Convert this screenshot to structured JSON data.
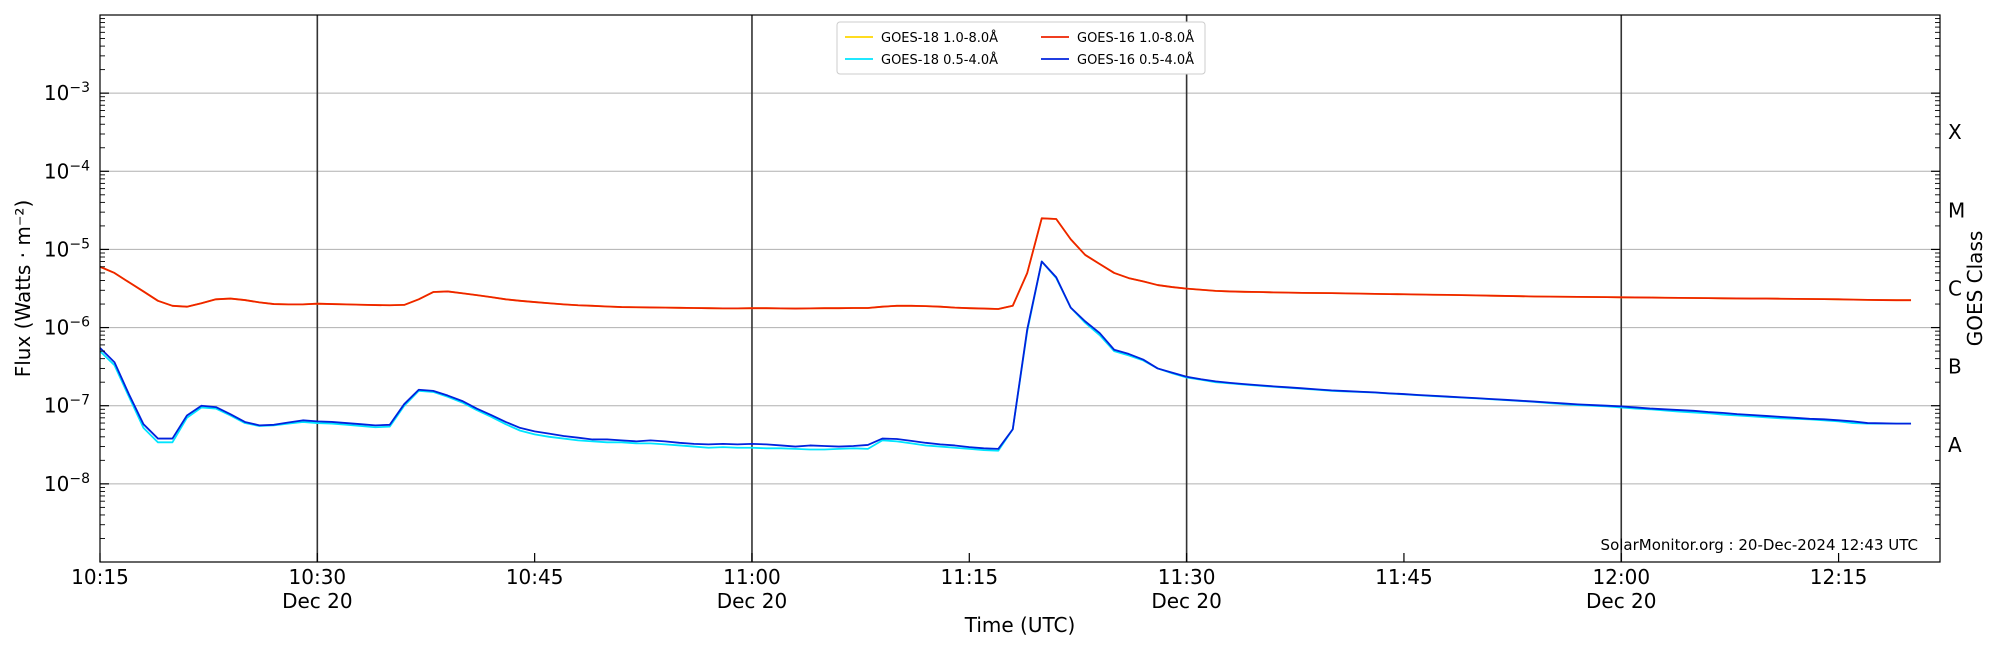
{
  "chart_data": {
    "type": "line",
    "xlabel": "Time (UTC)",
    "ylabel": "Flux (Watts · m⁻²)",
    "ylabel_right": "GOES Class",
    "x_unit": "minutes",
    "xlim": [
      615,
      742
    ],
    "ylim": [
      1e-09,
      0.01
    ],
    "y_scale": "log",
    "grid": "horizontal at decades",
    "legend_position": "top-center",
    "credit": "SolarMonitor.org : 20-Dec-2024 12:43 UTC",
    "x_ticks": [
      {
        "v": 615,
        "time": "10:15",
        "date": ""
      },
      {
        "v": 630,
        "time": "10:30",
        "date": "Dec 20"
      },
      {
        "v": 645,
        "time": "10:45",
        "date": ""
      },
      {
        "v": 660,
        "time": "11:00",
        "date": "Dec 20"
      },
      {
        "v": 675,
        "time": "11:15",
        "date": ""
      },
      {
        "v": 690,
        "time": "11:30",
        "date": "Dec 20"
      },
      {
        "v": 705,
        "time": "11:45",
        "date": ""
      },
      {
        "v": 720,
        "time": "12:00",
        "date": "Dec 20"
      },
      {
        "v": 735,
        "time": "12:15",
        "date": ""
      }
    ],
    "day_lines": [
      630,
      660,
      690,
      720
    ],
    "y_ticks": [
      {
        "v": 1e-08,
        "base": "10",
        "exp": "−8"
      },
      {
        "v": 1e-07,
        "base": "10",
        "exp": "−7"
      },
      {
        "v": 1e-06,
        "base": "10",
        "exp": "−6"
      },
      {
        "v": 1e-05,
        "base": "10",
        "exp": "−5"
      },
      {
        "v": 0.0001,
        "base": "10",
        "exp": "−4"
      },
      {
        "v": 0.001,
        "base": "10",
        "exp": "−3"
      }
    ],
    "goes_classes": [
      {
        "label": "A",
        "v": 3.16e-08
      },
      {
        "label": "B",
        "v": 3.16e-07
      },
      {
        "label": "C",
        "v": 3.16e-06
      },
      {
        "label": "M",
        "v": 3.16e-05
      },
      {
        "label": "X",
        "v": 0.000316
      }
    ],
    "x": [
      615,
      616,
      617,
      618,
      619,
      620,
      621,
      622,
      623,
      624,
      625,
      626,
      627,
      628,
      629,
      630,
      631,
      632,
      633,
      634,
      635,
      636,
      637,
      638,
      639,
      640,
      641,
      642,
      643,
      644,
      645,
      646,
      647,
      648,
      649,
      650,
      651,
      652,
      653,
      654,
      655,
      656,
      657,
      658,
      659,
      660,
      661,
      662,
      663,
      664,
      665,
      666,
      667,
      668,
      669,
      670,
      671,
      672,
      673,
      674,
      675,
      676,
      677,
      678,
      679,
      680,
      681,
      682,
      683,
      684,
      685,
      686,
      687,
      688,
      689,
      690,
      691,
      692,
      693,
      694,
      695,
      696,
      697,
      698,
      699,
      700,
      701,
      702,
      703,
      704,
      705,
      706,
      707,
      708,
      709,
      710,
      711,
      712,
      713,
      714,
      715,
      716,
      717,
      718,
      719,
      720,
      721,
      722,
      723,
      724,
      725,
      726,
      727,
      728,
      729,
      730,
      731,
      732,
      733,
      734,
      735,
      736,
      737,
      738,
      739,
      740
    ],
    "series": [
      {
        "name": "GOES-18 1.0-8.0Å",
        "color": "#ffd700",
        "values": [
          6e-06,
          5e-06,
          3.8e-06,
          2.9e-06,
          2.2e-06,
          1.9e-06,
          1.85e-06,
          2.05e-06,
          2.3e-06,
          2.35e-06,
          2.25e-06,
          2.1e-06,
          2e-06,
          1.98e-06,
          1.98e-06,
          2.02e-06,
          2e-06,
          1.98e-06,
          1.96e-06,
          1.94e-06,
          1.93e-06,
          1.95e-06,
          2.3e-06,
          2.85e-06,
          2.9e-06,
          2.75e-06,
          2.6e-06,
          2.45e-06,
          2.3e-06,
          2.2e-06,
          2.12e-06,
          2.05e-06,
          1.98e-06,
          1.93e-06,
          1.9e-06,
          1.86e-06,
          1.83e-06,
          1.82e-06,
          1.81e-06,
          1.8e-06,
          1.79e-06,
          1.78e-06,
          1.77e-06,
          1.76e-06,
          1.76e-06,
          1.77e-06,
          1.77e-06,
          1.76e-06,
          1.75e-06,
          1.76e-06,
          1.77e-06,
          1.77e-06,
          1.78e-06,
          1.78e-06,
          1.85e-06,
          1.9e-06,
          1.9e-06,
          1.88e-06,
          1.85e-06,
          1.8e-06,
          1.77e-06,
          1.75e-06,
          1.73e-06,
          1.9e-06,
          5e-06,
          2.5e-05,
          2.45e-05,
          1.35e-05,
          8.5e-06,
          6.5e-06,
          5e-06,
          4.3e-06,
          3.9e-06,
          3.5e-06,
          3.3e-06,
          3.15e-06,
          3.05e-06,
          2.95e-06,
          2.9e-06,
          2.87e-06,
          2.85e-06,
          2.82e-06,
          2.8e-06,
          2.78e-06,
          2.77e-06,
          2.76e-06,
          2.74e-06,
          2.72e-06,
          2.7e-06,
          2.68e-06,
          2.67e-06,
          2.65e-06,
          2.63e-06,
          2.62e-06,
          2.6e-06,
          2.58e-06,
          2.56e-06,
          2.54e-06,
          2.52e-06,
          2.5e-06,
          2.49e-06,
          2.48e-06,
          2.47e-06,
          2.46e-06,
          2.45e-06,
          2.44e-06,
          2.43e-06,
          2.42e-06,
          2.41e-06,
          2.4e-06,
          2.39e-06,
          2.38e-06,
          2.37e-06,
          2.36e-06,
          2.35e-06,
          2.35e-06,
          2.34e-06,
          2.33e-06,
          2.32e-06,
          2.31e-06,
          2.3e-06,
          2.28e-06,
          2.26e-06,
          2.25e-06,
          2.24e-06,
          2.24e-06
        ]
      },
      {
        "name": "GOES-16 1.0-8.0Å",
        "color": "#ee2200",
        "values": [
          6e-06,
          5e-06,
          3.8e-06,
          2.9e-06,
          2.2e-06,
          1.9e-06,
          1.85e-06,
          2.05e-06,
          2.3e-06,
          2.35e-06,
          2.25e-06,
          2.1e-06,
          2e-06,
          1.98e-06,
          1.98e-06,
          2.02e-06,
          2e-06,
          1.98e-06,
          1.96e-06,
          1.94e-06,
          1.93e-06,
          1.95e-06,
          2.3e-06,
          2.85e-06,
          2.9e-06,
          2.75e-06,
          2.6e-06,
          2.45e-06,
          2.3e-06,
          2.2e-06,
          2.12e-06,
          2.05e-06,
          1.98e-06,
          1.93e-06,
          1.9e-06,
          1.86e-06,
          1.83e-06,
          1.82e-06,
          1.81e-06,
          1.8e-06,
          1.79e-06,
          1.78e-06,
          1.77e-06,
          1.76e-06,
          1.76e-06,
          1.77e-06,
          1.77e-06,
          1.76e-06,
          1.75e-06,
          1.76e-06,
          1.77e-06,
          1.77e-06,
          1.78e-06,
          1.78e-06,
          1.85e-06,
          1.9e-06,
          1.9e-06,
          1.88e-06,
          1.85e-06,
          1.8e-06,
          1.77e-06,
          1.75e-06,
          1.73e-06,
          1.9e-06,
          5e-06,
          2.5e-05,
          2.45e-05,
          1.35e-05,
          8.5e-06,
          6.5e-06,
          5e-06,
          4.3e-06,
          3.9e-06,
          3.5e-06,
          3.3e-06,
          3.15e-06,
          3.05e-06,
          2.95e-06,
          2.9e-06,
          2.87e-06,
          2.85e-06,
          2.82e-06,
          2.8e-06,
          2.78e-06,
          2.77e-06,
          2.76e-06,
          2.74e-06,
          2.72e-06,
          2.7e-06,
          2.68e-06,
          2.67e-06,
          2.65e-06,
          2.63e-06,
          2.62e-06,
          2.6e-06,
          2.58e-06,
          2.56e-06,
          2.54e-06,
          2.52e-06,
          2.5e-06,
          2.49e-06,
          2.48e-06,
          2.47e-06,
          2.46e-06,
          2.45e-06,
          2.44e-06,
          2.43e-06,
          2.42e-06,
          2.41e-06,
          2.4e-06,
          2.39e-06,
          2.38e-06,
          2.37e-06,
          2.36e-06,
          2.35e-06,
          2.35e-06,
          2.34e-06,
          2.33e-06,
          2.32e-06,
          2.31e-06,
          2.3e-06,
          2.28e-06,
          2.26e-06,
          2.25e-06,
          2.24e-06,
          2.24e-06
        ]
      },
      {
        "name": "GOES-18 0.5-4.0Å",
        "color": "#00e5ff",
        "values": [
          5e-07,
          3.3e-07,
          1.3e-07,
          5.2e-08,
          3.4e-08,
          3.4e-08,
          7e-08,
          9.5e-08,
          9.2e-08,
          7.5e-08,
          6e-08,
          5.5e-08,
          5.6e-08,
          5.9e-08,
          6.2e-08,
          6e-08,
          5.9e-08,
          5.7e-08,
          5.5e-08,
          5.3e-08,
          5.4e-08,
          1e-07,
          1.55e-07,
          1.5e-07,
          1.3e-07,
          1.1e-07,
          8.8e-08,
          7.2e-08,
          5.8e-08,
          4.8e-08,
          4.3e-08,
          4e-08,
          3.8e-08,
          3.6e-08,
          3.5e-08,
          3.4e-08,
          3.4e-08,
          3.3e-08,
          3.3e-08,
          3.2e-08,
          3.1e-08,
          3e-08,
          2.9e-08,
          2.95e-08,
          2.9e-08,
          2.9e-08,
          2.85e-08,
          2.85e-08,
          2.8e-08,
          2.75e-08,
          2.75e-08,
          2.8e-08,
          2.85e-08,
          2.8e-08,
          3.6e-08,
          3.5e-08,
          3.3e-08,
          3.1e-08,
          3e-08,
          2.9e-08,
          2.8e-08,
          2.7e-08,
          2.65e-08,
          5e-08,
          9e-07,
          7e-06,
          4.3e-06,
          1.8e-06,
          1.15e-06,
          8e-07,
          5e-07,
          4.4e-07,
          3.8e-07,
          3e-07,
          2.6e-07,
          2.3e-07,
          2.15e-07,
          2e-07,
          1.93e-07,
          1.86e-07,
          1.8e-07,
          1.75e-07,
          1.7e-07,
          1.65e-07,
          1.6e-07,
          1.55e-07,
          1.52e-07,
          1.5e-07,
          1.47e-07,
          1.43e-07,
          1.4e-07,
          1.36e-07,
          1.33e-07,
          1.3e-07,
          1.27e-07,
          1.24e-07,
          1.21e-07,
          1.18e-07,
          1.15e-07,
          1.12e-07,
          1.08e-07,
          1.05e-07,
          1.02e-07,
          1e-07,
          9.8e-08,
          9.5e-08,
          9.2e-08,
          9e-08,
          8.7e-08,
          8.4e-08,
          8.2e-08,
          8e-08,
          7.7e-08,
          7.5e-08,
          7.3e-08,
          7.1e-08,
          6.9e-08,
          6.8e-08,
          6.7e-08,
          6.5e-08,
          6.3e-08,
          6e-08,
          5.9e-08,
          5.9e-08,
          5.9e-08,
          5.9e-08
        ]
      },
      {
        "name": "GOES-16 0.5-4.0Å",
        "color": "#0022dd",
        "values": [
          5.5e-07,
          3.6e-07,
          1.4e-07,
          5.8e-08,
          3.8e-08,
          3.8e-08,
          7.5e-08,
          1e-07,
          9.6e-08,
          7.8e-08,
          6.2e-08,
          5.6e-08,
          5.7e-08,
          6.1e-08,
          6.5e-08,
          6.3e-08,
          6.2e-08,
          6e-08,
          5.8e-08,
          5.6e-08,
          5.7e-08,
          1.05e-07,
          1.6e-07,
          1.55e-07,
          1.35e-07,
          1.15e-07,
          9.2e-08,
          7.6e-08,
          6.2e-08,
          5.2e-08,
          4.7e-08,
          4.4e-08,
          4.1e-08,
          3.9e-08,
          3.7e-08,
          3.7e-08,
          3.6e-08,
          3.5e-08,
          3.6e-08,
          3.5e-08,
          3.35e-08,
          3.25e-08,
          3.2e-08,
          3.25e-08,
          3.2e-08,
          3.25e-08,
          3.2e-08,
          3.1e-08,
          3e-08,
          3.1e-08,
          3.05e-08,
          3e-08,
          3.05e-08,
          3.15e-08,
          3.8e-08,
          3.75e-08,
          3.55e-08,
          3.35e-08,
          3.2e-08,
          3.1e-08,
          2.95e-08,
          2.85e-08,
          2.8e-08,
          5e-08,
          9.5e-07,
          7e-06,
          4.4e-06,
          1.8e-06,
          1.2e-06,
          8.5e-07,
          5.2e-07,
          4.6e-07,
          3.9e-07,
          3e-07,
          2.65e-07,
          2.35e-07,
          2.18e-07,
          2.05e-07,
          1.96e-07,
          1.89e-07,
          1.83e-07,
          1.77e-07,
          1.72e-07,
          1.67e-07,
          1.62e-07,
          1.57e-07,
          1.54e-07,
          1.51e-07,
          1.48e-07,
          1.44e-07,
          1.41e-07,
          1.37e-07,
          1.34e-07,
          1.31e-07,
          1.28e-07,
          1.25e-07,
          1.22e-07,
          1.19e-07,
          1.16e-07,
          1.13e-07,
          1.1e-07,
          1.07e-07,
          1.04e-07,
          1.02e-07,
          1e-07,
          9.8e-08,
          9.5e-08,
          9.2e-08,
          9e-08,
          8.8e-08,
          8.6e-08,
          8.3e-08,
          8.1e-08,
          7.8e-08,
          7.6e-08,
          7.4e-08,
          7.2e-08,
          7e-08,
          6.8e-08,
          6.7e-08,
          6.5e-08,
          6.3e-08,
          6e-08,
          5.95e-08,
          5.9e-08,
          5.9e-08
        ]
      }
    ]
  }
}
